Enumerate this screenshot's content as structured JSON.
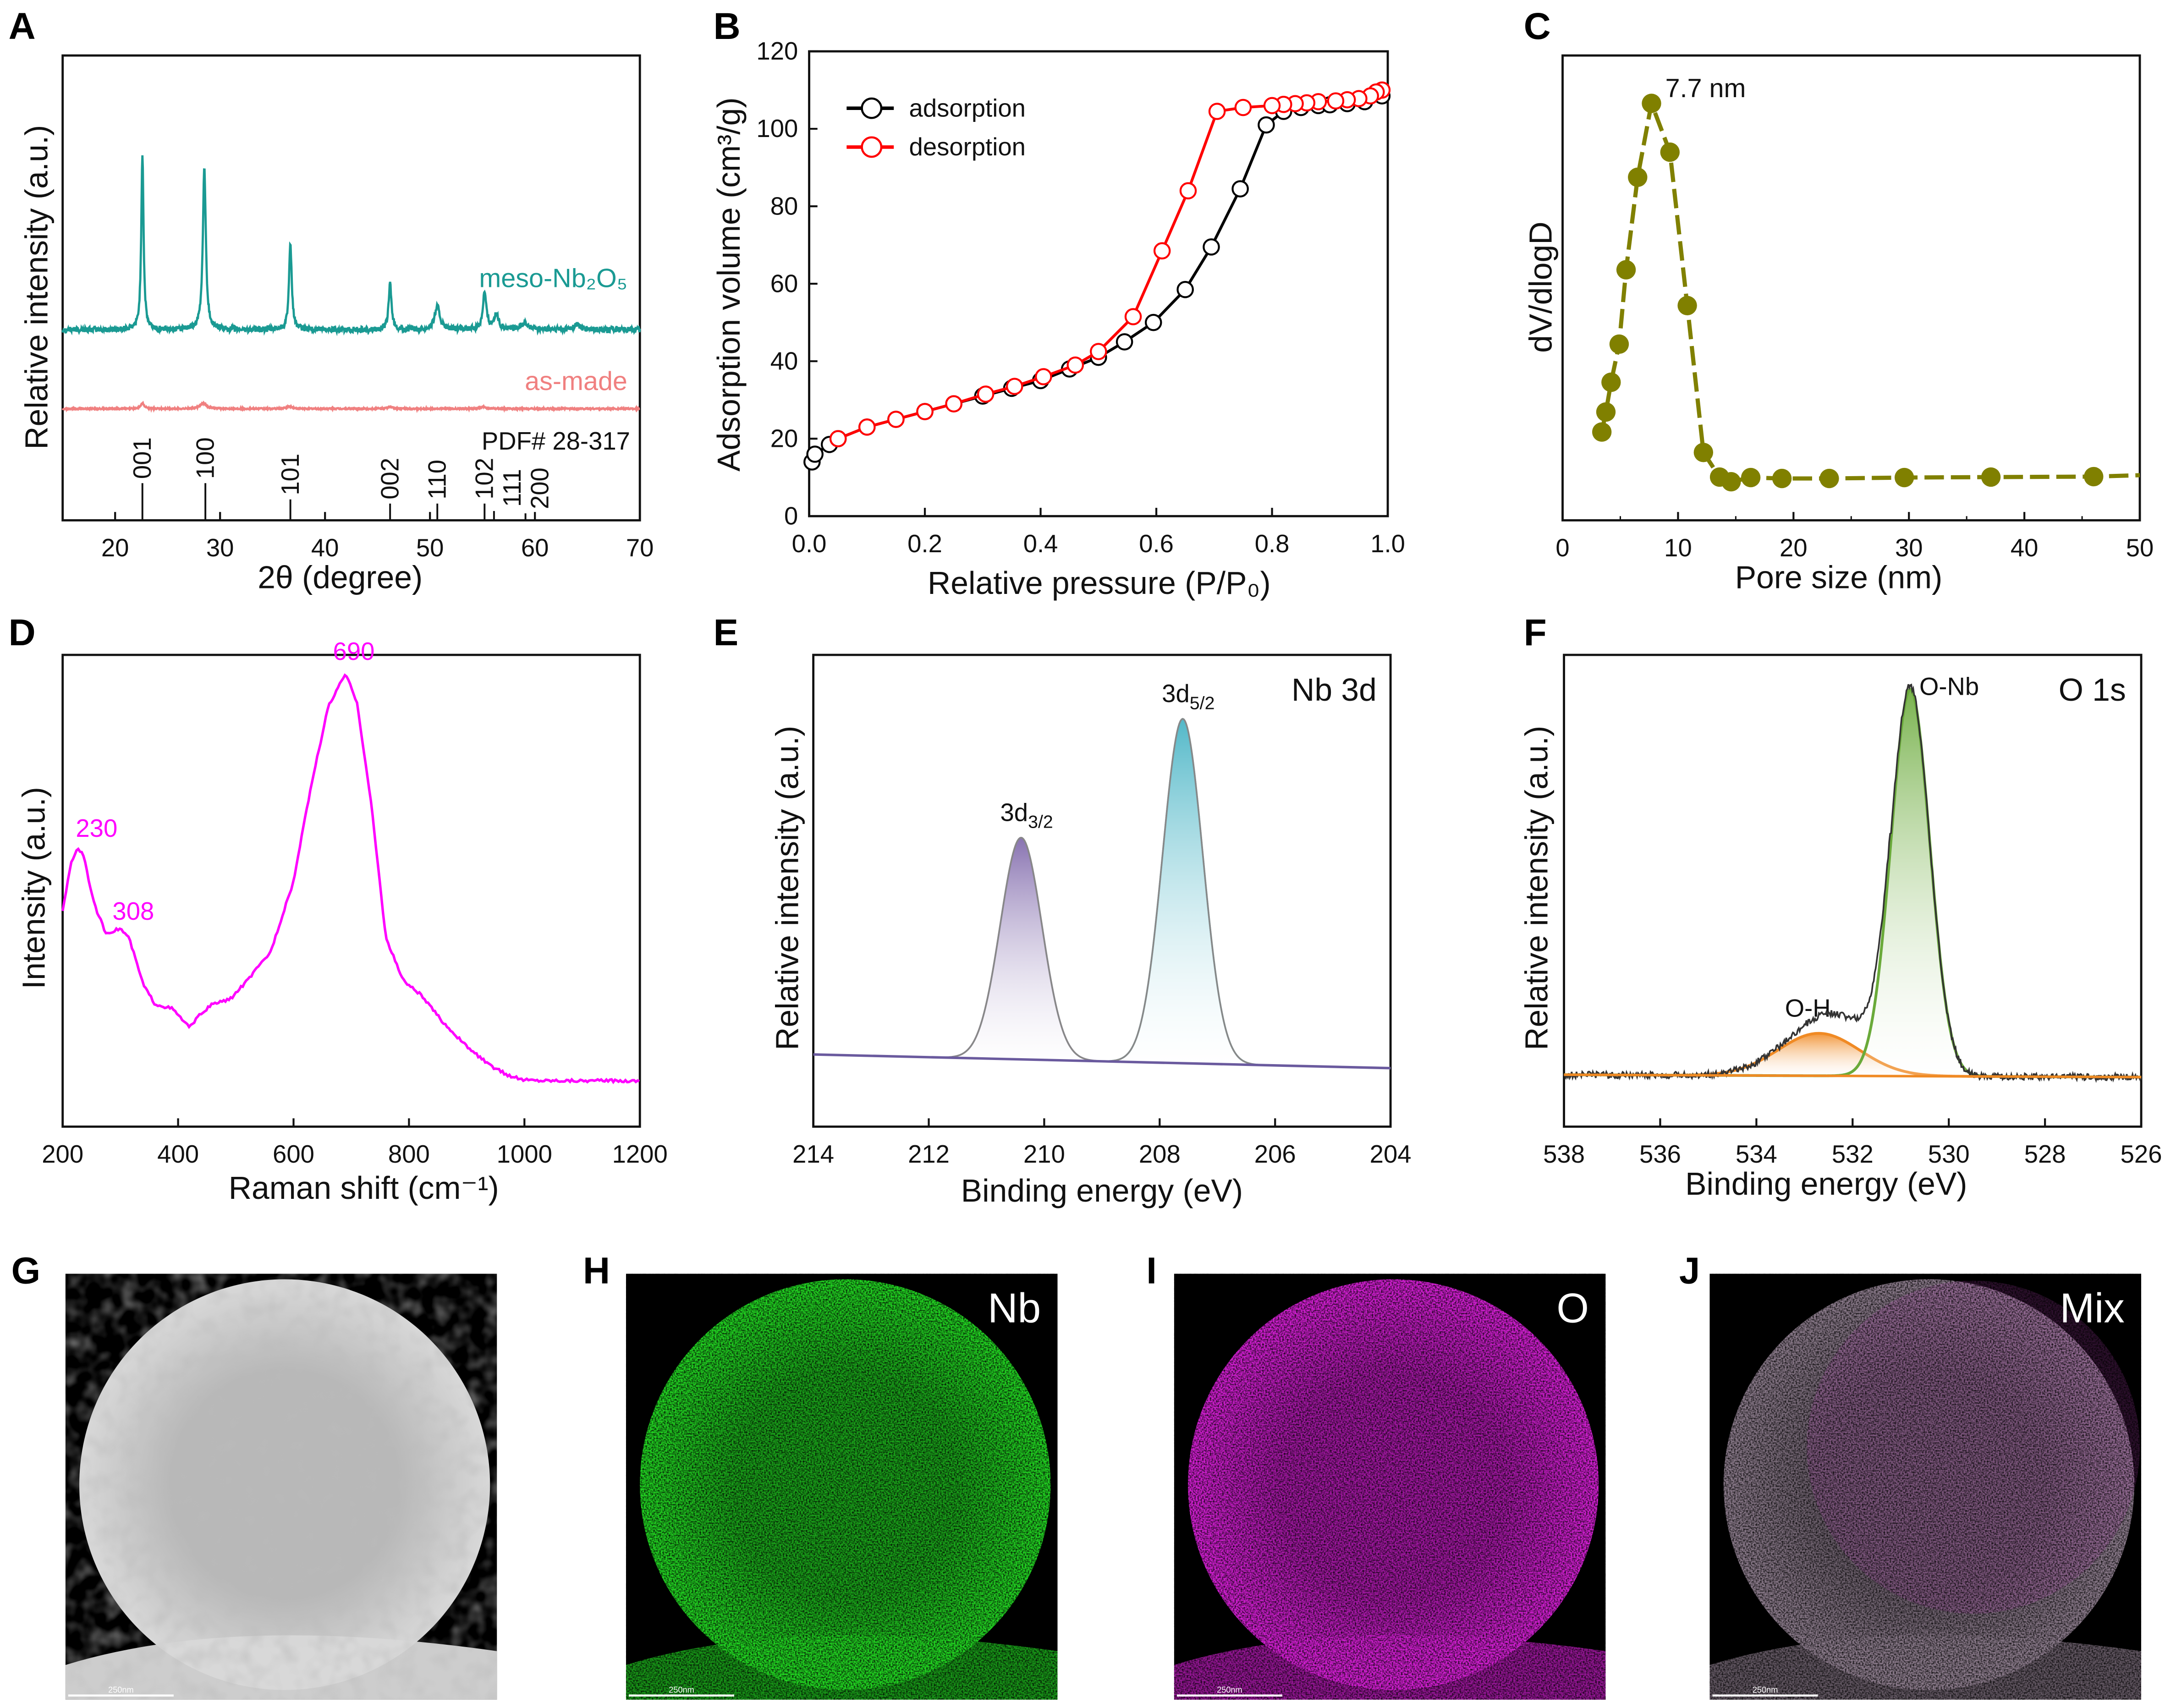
{
  "panel_labels": {
    "A": "A",
    "B": "B",
    "C": "C",
    "D": "D",
    "E": "E",
    "F": "F",
    "G": "G",
    "H": "H",
    "I": "I",
    "J": "J"
  },
  "chart_data": [
    {
      "id": "A",
      "type": "line",
      "xlabel": "2θ (degree)",
      "ylabel": "Relative intensity (a.u.)",
      "xlim": [
        15,
        70
      ],
      "ylim": [
        0,
        1
      ],
      "xticks": [
        20,
        30,
        40,
        50,
        60,
        70
      ],
      "yticks": [],
      "grid": false,
      "series": [
        {
          "name": "meso-Nb₂O₅",
          "color": "#1a9a93",
          "baseline": 0.41,
          "noise": 0.012,
          "peaks": [
            [
              22.6,
              0.38,
              0.13
            ],
            [
              28.5,
              0.35,
              0.17
            ],
            [
              36.7,
              0.18,
              0.16
            ],
            [
              46.2,
              0.1,
              0.16
            ],
            [
              50.7,
              0.05,
              0.3
            ],
            [
              55.2,
              0.08,
              0.2
            ],
            [
              56.3,
              0.03,
              0.3
            ],
            [
              59.0,
              0.015,
              0.4
            ],
            [
              64.0,
              0.01,
              0.4
            ]
          ]
        },
        {
          "name": "as-made",
          "color": "#f08080",
          "baseline": 0.24,
          "noise": 0.003,
          "peaks": [
            [
              22.6,
              0.012,
              0.2
            ],
            [
              28.4,
              0.012,
              0.35
            ],
            [
              36.6,
              0.005,
              0.3
            ],
            [
              46.2,
              0.004,
              0.3
            ],
            [
              55.1,
              0.004,
              0.3
            ]
          ]
        }
      ],
      "reference": {
        "label": "PDF# 28-317",
        "sticks": [
          {
            "x": 22.6,
            "h": 0.08,
            "label": "001"
          },
          {
            "x": 28.6,
            "h": 0.08,
            "label": "100"
          },
          {
            "x": 36.7,
            "h": 0.045,
            "label": "101"
          },
          {
            "x": 46.2,
            "h": 0.036,
            "label": "002"
          },
          {
            "x": 50.7,
            "h": 0.036,
            "label": "110"
          },
          {
            "x": 55.2,
            "h": 0.036,
            "label": "102"
          },
          {
            "x": 56.1,
            "h": 0.02,
            "label": "111"
          },
          {
            "x": 59.1,
            "h": 0.015,
            "label": "200"
          }
        ]
      }
    },
    {
      "id": "B",
      "type": "line",
      "xlabel": "Relative pressure (P/P₀)",
      "ylabel": "Adsorption volume (cm³/g)",
      "xlim": [
        0,
        1
      ],
      "ylim": [
        0,
        120
      ],
      "xticks": [
        0.0,
        0.2,
        0.4,
        0.6,
        0.8,
        1.0
      ],
      "yticks": [
        0,
        20,
        40,
        60,
        80,
        100,
        120
      ],
      "grid": false,
      "legend": "top-left",
      "series": [
        {
          "name": "adsorption",
          "color": "#000000",
          "x": [
            0.005,
            0.01,
            0.035,
            0.05,
            0.1,
            0.15,
            0.2,
            0.25,
            0.3,
            0.35,
            0.4,
            0.45,
            0.5,
            0.545,
            0.595,
            0.65,
            0.695,
            0.745,
            0.79,
            0.82,
            0.85,
            0.88,
            0.9,
            0.93,
            0.96,
            0.99
          ],
          "y": [
            14,
            16,
            18.5,
            20,
            23,
            25,
            27,
            29,
            31,
            33,
            35,
            38,
            41,
            45,
            50,
            58.5,
            69.5,
            84.5,
            101,
            104.5,
            105.5,
            106,
            106.2,
            106.5,
            107,
            108.5
          ]
        },
        {
          "name": "desorption",
          "color": "#ff0000",
          "x": [
            0.99,
            0.98,
            0.97,
            0.95,
            0.93,
            0.91,
            0.88,
            0.86,
            0.84,
            0.82,
            0.8,
            0.75,
            0.705,
            0.655,
            0.61,
            0.56,
            0.5,
            0.46,
            0.405,
            0.355,
            0.305,
            0.25,
            0.2,
            0.15,
            0.1,
            0.05
          ],
          "y": [
            110,
            109.5,
            108.5,
            107.8,
            107.5,
            107.2,
            107,
            106.7,
            106.5,
            106.3,
            106,
            105.5,
            104.5,
            84,
            68.5,
            51.5,
            42.5,
            39,
            36,
            33.5,
            31.5,
            29,
            27,
            25,
            23,
            20
          ]
        }
      ]
    },
    {
      "id": "C",
      "type": "line",
      "xlabel": "Pore size (nm)",
      "ylabel": "dV/dlogD",
      "xlim": [
        0,
        50
      ],
      "ylim": [
        0,
        1
      ],
      "xticks": [
        0,
        10,
        20,
        30,
        40,
        50
      ],
      "yticks": [],
      "grid": false,
      "annotation": "7.7 nm",
      "series": [
        {
          "color": "#808000",
          "x": [
            3.4,
            3.75,
            4.2,
            4.9,
            5.5,
            6.5,
            7.7,
            9.3,
            10.8,
            12.2,
            13.6,
            14.6,
            16.3,
            19.0,
            23.1,
            29.6,
            37.1,
            46.0,
            50
          ],
          "y": [
            0.19,
            0.233,
            0.297,
            0.379,
            0.539,
            0.738,
            0.897,
            0.792,
            0.462,
            0.146,
            0.093,
            0.083,
            0.092,
            0.09,
            0.09,
            0.092,
            0.093,
            0.094,
            0.097
          ]
        }
      ]
    },
    {
      "id": "D",
      "type": "line",
      "xlabel": "Raman shift (cm⁻¹)",
      "ylabel": "Intensity (a.u.)",
      "xlim": [
        200,
        1200
      ],
      "ylim": [
        0,
        1
      ],
      "xticks": [
        200,
        400,
        600,
        800,
        1000,
        1200
      ],
      "yticks": [],
      "grid": false,
      "annotations": [
        {
          "x": 230,
          "text": "230"
        },
        {
          "x": 308,
          "text": "308"
        },
        {
          "x": 690,
          "text": "690"
        }
      ],
      "series": [
        {
          "color": "#ff00ff",
          "x": [
            200,
            215,
            225,
            235,
            255,
            275,
            300,
            315,
            340,
            360,
            390,
            420,
            440,
            460,
            490,
            520,
            560,
            600,
            630,
            660,
            690,
            710,
            735,
            760,
            790,
            820,
            860,
            900,
            940,
            970,
            995,
            1020,
            1200
          ],
          "y": [
            0.46,
            0.56,
            0.59,
            0.58,
            0.47,
            0.41,
            0.42,
            0.4,
            0.3,
            0.26,
            0.25,
            0.21,
            0.24,
            0.26,
            0.27,
            0.31,
            0.37,
            0.52,
            0.72,
            0.89,
            0.96,
            0.9,
            0.68,
            0.4,
            0.31,
            0.28,
            0.22,
            0.17,
            0.13,
            0.11,
            0.1,
            0.098,
            0.097
          ]
        }
      ]
    },
    {
      "id": "E",
      "type": "line",
      "xlabel": "Binding energy (eV)",
      "ylabel": "Relative intensity (a.u.)",
      "xlim": [
        214,
        204
      ],
      "ylim": [
        0,
        1
      ],
      "xticks": [
        214,
        212,
        210,
        208,
        206,
        204
      ],
      "yticks": [],
      "grid": false,
      "title": "Nb 3d",
      "baseline": [
        0.153,
        0.124
      ],
      "components": [
        {
          "label_main": "3d",
          "label_sub": "3/2",
          "center": 210.4,
          "height": 0.47,
          "fwhm": 0.85,
          "color": "#7b63a8"
        },
        {
          "label_main": "3d",
          "label_sub": "5/2",
          "center": 207.6,
          "height": 0.73,
          "fwhm": 0.82,
          "color": "#3fb0c2"
        }
      ],
      "envelope_color": "#888888",
      "baseline_color": "#6a5a9e"
    },
    {
      "id": "F",
      "type": "line",
      "xlabel": "Binding energy (eV)",
      "ylabel": "Relative intensity (a.u.)",
      "xlim": [
        538,
        526
      ],
      "ylim": [
        0,
        1
      ],
      "xticks": [
        538,
        536,
        534,
        532,
        530,
        528,
        526
      ],
      "yticks": [],
      "grid": false,
      "title": "O 1s",
      "baseline": [
        0.11,
        0.105
      ],
      "components": [
        {
          "label_main": "O-H",
          "label_sub": "",
          "center": 532.7,
          "height": 0.09,
          "fwhm": 2.0,
          "color": "#f08a24"
        },
        {
          "label_main": "O-Nb",
          "label_sub": "",
          "center": 530.8,
          "height": 0.82,
          "fwhm": 0.95,
          "color": "#6aaa3a"
        }
      ],
      "envelope_color": "#333333",
      "baseline_color": "#f08a24"
    }
  ],
  "eds_maps": [
    {
      "panel": "G",
      "label": "",
      "color": "#d8d8d8",
      "scale_bar": "250nm"
    },
    {
      "panel": "H",
      "label": "Nb",
      "color": "#22d422",
      "scale_bar": "250nm"
    },
    {
      "panel": "I",
      "label": "O",
      "color": "#d21fd2",
      "scale_bar": "250nm"
    },
    {
      "panel": "J",
      "label": "Mix",
      "color": "#8a7a8a",
      "scale_bar": "250nm"
    }
  ]
}
